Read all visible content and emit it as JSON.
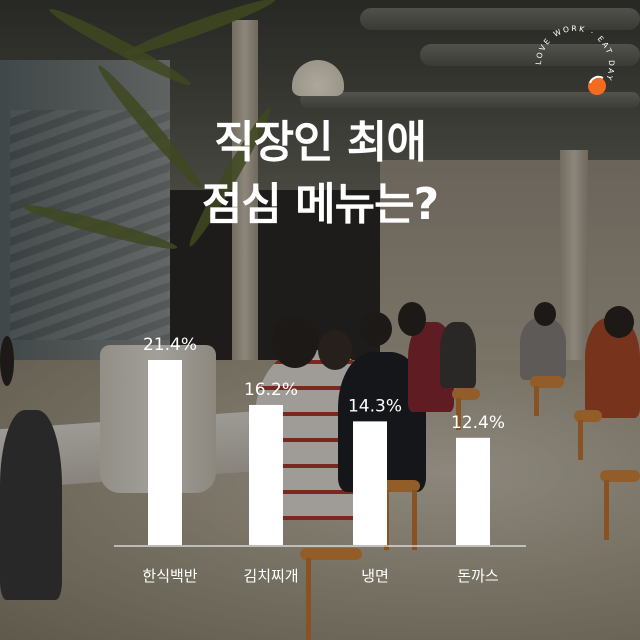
{
  "headline": {
    "line1": "직장인 최애",
    "line2": "점심 메뉴는?"
  },
  "logo": {
    "ring_text": "LOVE WORK · EAT DAY ·",
    "color": "#f26b21"
  },
  "chart_data": {
    "type": "bar",
    "categories": [
      "한식백반",
      "김치찌개",
      "냉면",
      "돈까스"
    ],
    "values": [
      21.4,
      16.2,
      14.3,
      12.4
    ],
    "value_labels": [
      "21.4%",
      "16.2%",
      "14.3%",
      "12.4%"
    ],
    "unit": "%",
    "ylim": [
      0,
      21.4
    ],
    "grid": false,
    "legend": "none",
    "bar_color": "#ffffff",
    "text_color": "#ffffff"
  }
}
